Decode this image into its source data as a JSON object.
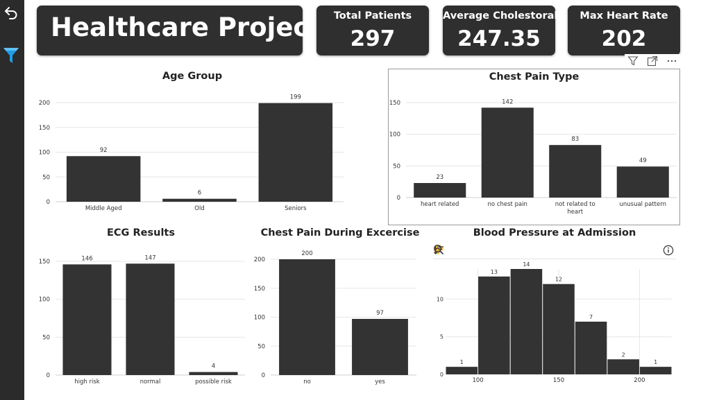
{
  "header": {
    "title": "Healthcare Project",
    "kpis": [
      {
        "label": "Total Patients",
        "value": "297"
      },
      {
        "label": "Average Cholestoral",
        "value": "247.35"
      },
      {
        "label": "Max Heart Rate",
        "value": "202"
      }
    ]
  },
  "sidebar": {
    "icons": [
      "undo-icon",
      "filter-icon"
    ]
  },
  "visual_header_icons": [
    "filter-icon",
    "focus-mode-icon",
    "more-options-icon"
  ],
  "bp_toolbar_icons": [
    "palette-icon",
    "sort-icon",
    "zoom-icon",
    "info-icon"
  ],
  "colors": {
    "bar": "#333333",
    "dark_card": "#2f2f2f",
    "sidebar": "#2b2b2b",
    "accent": "#1f9ee8",
    "grid": "#e6e6e6"
  },
  "chart_data": [
    {
      "id": "age",
      "type": "bar",
      "title": "Age Group",
      "categories": [
        "Middle Aged",
        "Old",
        "Seniors"
      ],
      "values": [
        92,
        6,
        199
      ],
      "ylim": [
        0,
        200
      ],
      "yticks": [
        0,
        50,
        100,
        150,
        200
      ],
      "grid": true
    },
    {
      "id": "cp",
      "type": "bar",
      "title": "Chest Pain Type",
      "categories": [
        "heart related",
        "no chest pain",
        "not related to heart",
        "unusual pattern"
      ],
      "values": [
        23,
        142,
        83,
        49
      ],
      "ylim": [
        0,
        150
      ],
      "yticks": [
        0,
        50,
        100,
        150
      ],
      "grid": true
    },
    {
      "id": "ecg",
      "type": "bar",
      "title": "ECG Results",
      "categories": [
        "high risk",
        "normal",
        "possible risk"
      ],
      "values": [
        146,
        147,
        4
      ],
      "ylim": [
        0,
        150
      ],
      "yticks": [
        0,
        50,
        100,
        150
      ],
      "grid": true
    },
    {
      "id": "ex",
      "type": "bar",
      "title": "Chest Pain During Excercise",
      "categories": [
        "no",
        "yes"
      ],
      "values": [
        200,
        97
      ],
      "ylim": [
        0,
        200
      ],
      "yticks": [
        0,
        50,
        100,
        150,
        200
      ],
      "grid": true
    },
    {
      "id": "bp",
      "type": "histogram",
      "title": "Blood Pressure at Admission",
      "bins": [
        {
          "start": 80,
          "end": 100,
          "count": 1
        },
        {
          "start": 100,
          "end": 120,
          "count": 13
        },
        {
          "start": 120,
          "end": 140,
          "count": 14
        },
        {
          "start": 140,
          "end": 160,
          "count": 12
        },
        {
          "start": 160,
          "end": 180,
          "count": 7
        },
        {
          "start": 180,
          "end": 200,
          "count": 2
        },
        {
          "start": 200,
          "end": 220,
          "count": 1
        }
      ],
      "xlim": [
        80,
        220
      ],
      "xticks": [
        100,
        150,
        200
      ],
      "ylim": [
        0,
        14
      ],
      "yticks": [
        0,
        5,
        10
      ],
      "grid": true
    }
  ]
}
